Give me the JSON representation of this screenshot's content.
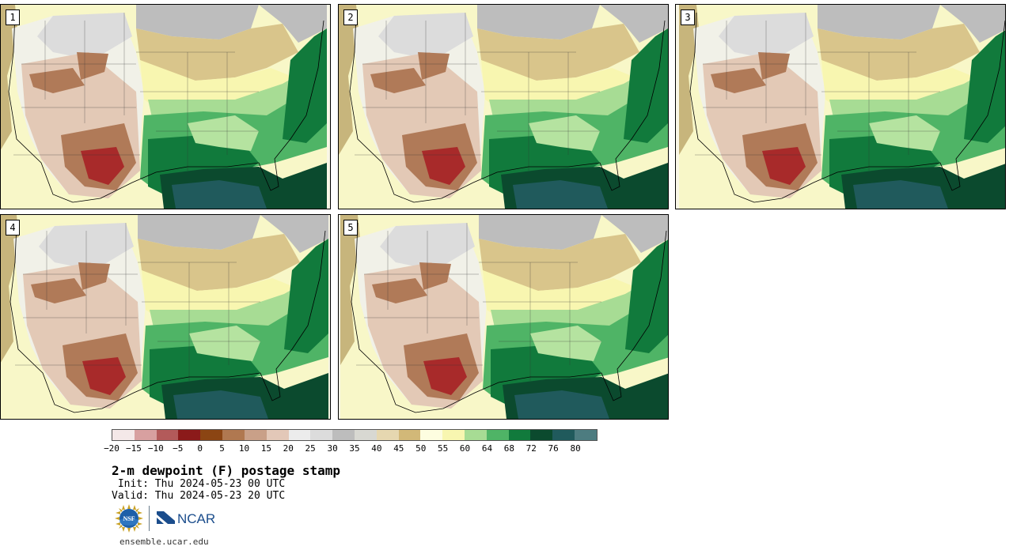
{
  "panels": [
    {
      "label": "1"
    },
    {
      "label": "2"
    },
    {
      "label": "3"
    },
    {
      "label": "4"
    },
    {
      "label": "5"
    }
  ],
  "colorbar": {
    "colors": [
      "#f4e8e8",
      "#d8a0a0",
      "#b35a5a",
      "#8b1a1a",
      "#8b4513",
      "#b07850",
      "#c9a088",
      "#e3c8b8",
      "#ececec",
      "#dcdcdc",
      "#bdbdbd",
      "#d8d8d2",
      "#e6d7b0",
      "#d2b878",
      "#fdfde0",
      "#f8f6b0",
      "#a7dc94",
      "#4fb466",
      "#117a3c",
      "#0b4a2e",
      "#205a5c",
      "#4d7c80"
    ],
    "tick_labels": [
      "−20",
      "−15",
      "−10",
      "−5",
      "0",
      "5",
      "10",
      "15",
      "20",
      "25",
      "30",
      "35",
      "40",
      "45",
      "50",
      "55",
      "60",
      "64",
      "68",
      "72",
      "76",
      "80"
    ]
  },
  "title": "2-m dewpoint (F) postage stamp",
  "init": " Init: Thu 2024-05-23 00 UTC",
  "valid": "Valid: Thu 2024-05-23 20 UTC",
  "logos": {
    "nsf": "NSF",
    "ncar": "NCAR"
  },
  "footer_url": "ensemble.ucar.edu"
}
